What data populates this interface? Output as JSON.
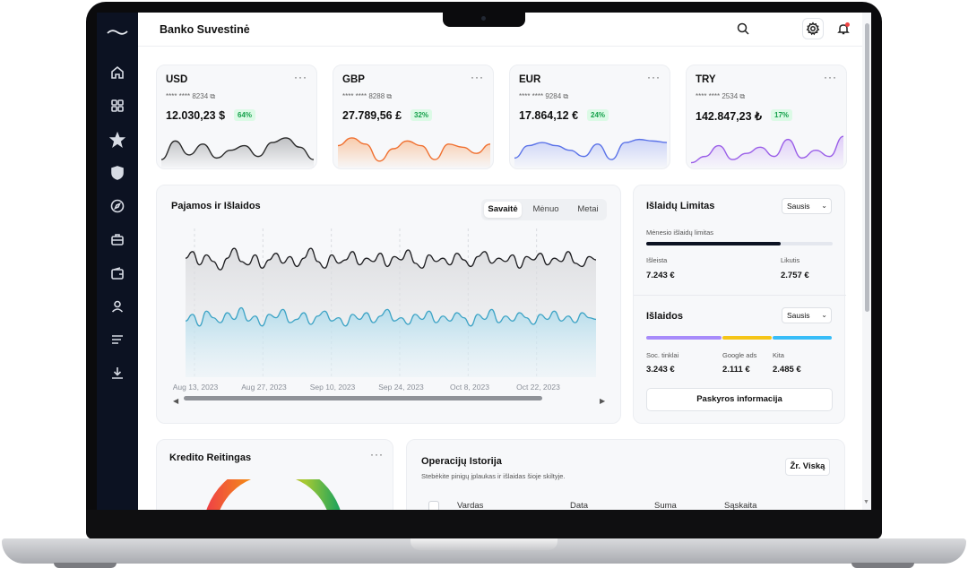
{
  "app": {
    "title": "Banko Suvestinė"
  },
  "sidebar": {
    "icons": [
      "logo-wave-icon",
      "home-icon",
      "grid-icon",
      "star-icon",
      "shield-icon",
      "compass-icon",
      "briefcase-icon",
      "wallet-icon",
      "user-icon",
      "menu-lines-icon",
      "download-icon"
    ]
  },
  "topbar": {
    "icons": [
      "search-icon",
      "gear-icon",
      "bell-icon",
      "menu-icon"
    ]
  },
  "currency_cards": [
    {
      "code": "USD",
      "number": "**** **** 8234",
      "balance": "12.030,23 $",
      "change": "64%",
      "color": "#2b2b2b",
      "fill": "#b9babd",
      "spark": [
        18,
        6,
        15,
        8,
        17,
        12,
        9,
        16,
        7,
        4,
        10,
        18
      ]
    },
    {
      "code": "GBP",
      "number": "**** **** 8288",
      "balance": "27.789,56 £",
      "change": "32%",
      "color": "#f07030",
      "fill": "#f9c7a4",
      "spark": [
        9,
        4,
        8,
        19,
        11,
        6,
        9,
        18,
        8,
        10,
        14,
        8
      ]
    },
    {
      "code": "EUR",
      "number": "**** **** 9284",
      "balance": "17.864,12 €",
      "change": "24%",
      "color": "#5a72e8",
      "fill": "#c8d0f7",
      "spark": [
        17,
        9,
        7,
        9,
        12,
        16,
        8,
        18,
        7,
        5,
        6,
        7
      ]
    },
    {
      "code": "TRY",
      "number": "**** **** 2534",
      "balance": "142.847,23 ₺",
      "change": "17%",
      "color": "#9a5ee8",
      "fill": "#dcc7f8",
      "spark": [
        20,
        16,
        9,
        18,
        14,
        10,
        16,
        5,
        17,
        12,
        16,
        3
      ]
    }
  ],
  "income": {
    "title": "Pajamos ir Išlaidos",
    "tabs": [
      "Savaitė",
      "Mėnuo",
      "Metai"
    ],
    "active_tab": "Savaitė",
    "x_ticks": [
      "Aug 13, 2023",
      "Aug 27, 2023",
      "Sep 10, 2023",
      "Sep 24, 2023",
      "Oct 8, 2023",
      "Oct 22, 2023"
    ]
  },
  "chart_data": {
    "type": "area",
    "x_start": "Aug 13, 2023",
    "x_ticks": [
      "Aug 13, 2023",
      "Aug 27, 2023",
      "Sep 10, 2023",
      "Sep 24, 2023",
      "Oct 8, 2023",
      "Oct 22, 2023"
    ],
    "grid": true,
    "legend": "none",
    "series": [
      {
        "color": "#1f1f22",
        "values": [
          72,
          76,
          68,
          74,
          70,
          65,
          72,
          78,
          70,
          68,
          74,
          66,
          71,
          75,
          69,
          73,
          67,
          72,
          78,
          70,
          66,
          74,
          69,
          71,
          76,
          68,
          72,
          70,
          75,
          67,
          73,
          71,
          77,
          69,
          66,
          74,
          70,
          72,
          68,
          75,
          71,
          67,
          73,
          76,
          69,
          72,
          70,
          74,
          66,
          73,
          71,
          75,
          68,
          72,
          70,
          76,
          69,
          67,
          73,
          71
        ]
      },
      {
        "color": "#3ea4c6",
        "values": [
          34,
          38,
          31,
          40,
          36,
          33,
          39,
          35,
          42,
          34,
          37,
          31,
          38,
          36,
          41,
          33,
          35,
          39,
          32,
          37,
          40,
          34,
          36,
          31,
          38,
          35,
          39,
          33,
          37,
          41,
          34,
          36,
          32,
          38,
          35,
          40,
          33,
          37,
          34,
          39,
          36,
          31,
          38,
          35,
          41,
          33,
          37,
          34,
          39,
          36,
          32,
          38,
          35,
          40,
          34,
          37,
          33,
          39,
          36,
          35
        ]
      }
    ]
  },
  "limits": {
    "title": "Išlaidų Limitas",
    "month": "Sausis",
    "subtitle": "Mėnesio išlaidų limitas",
    "progress": 0.72,
    "spent_label": "Išleista",
    "spent_value": "7.243 €",
    "left_label": "Likutis",
    "left_value": "2.757 €"
  },
  "expenses": {
    "title": "Išlaidos",
    "month": "Sausis",
    "segments": [
      {
        "label": "Soc. tinklai",
        "value": "3.243 €",
        "share": 0.41,
        "color": "#a78bfa"
      },
      {
        "label": "Google ads",
        "value": "2.111 €",
        "share": 0.27,
        "color": "#f5c518"
      },
      {
        "label": "Kita",
        "value": "2.485 €",
        "share": 0.32,
        "color": "#38bdf8"
      }
    ],
    "button": "Paskyros informacija"
  },
  "credit": {
    "title": "Kredito Reitingas"
  },
  "history": {
    "title": "Operacijų Istorija",
    "subtitle": "Stebėkite pinigų įplaukas ir išlaidas šioje skiltyje.",
    "button": "Žr. Viską",
    "columns": [
      "Vardas",
      "Data",
      "Suma",
      "Sąskaita"
    ]
  }
}
